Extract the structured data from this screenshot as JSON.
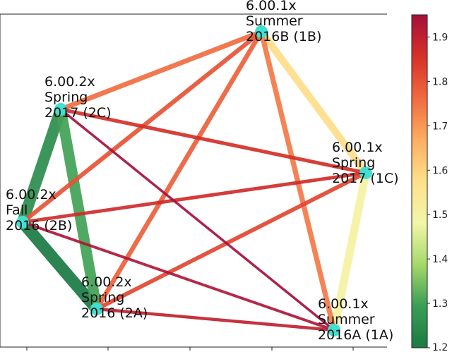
{
  "nodes": [
    {
      "id": "1B",
      "lines": [
        "6.00.1x",
        "Summer",
        "2016B (1B)"
      ]
    },
    {
      "id": "2C",
      "lines": [
        "6.00.2x",
        "Spring",
        "2017 (2C)"
      ]
    },
    {
      "id": "1C",
      "lines": [
        "6.00.1x",
        "Spring",
        "2017 (1C)"
      ]
    },
    {
      "id": "2B",
      "lines": [
        "6.00.2x",
        "Fall",
        "2016 (2B)"
      ]
    },
    {
      "id": "2A",
      "lines": [
        "6.00.2x",
        "Spring",
        "2016 (2A)"
      ]
    },
    {
      "id": "1A",
      "lines": [
        "6.00.1x",
        "Summer",
        "2016A (1A)"
      ]
    }
  ],
  "edges": [
    {
      "from": "2B",
      "to": "2A",
      "value": 1.2
    },
    {
      "from": "2C",
      "to": "2B",
      "value": 1.25
    },
    {
      "from": "2C",
      "to": "2A",
      "value": 1.3
    },
    {
      "from": "1B",
      "to": "1C",
      "value": 1.58
    },
    {
      "from": "1C",
      "to": "1A",
      "value": 1.5
    },
    {
      "from": "2C",
      "to": "1B",
      "value": 1.76
    },
    {
      "from": "1B",
      "to": "2A",
      "value": 1.78
    },
    {
      "from": "1B",
      "to": "2B",
      "value": 1.8
    },
    {
      "from": "1B",
      "to": "1A",
      "value": 1.74
    },
    {
      "from": "2C",
      "to": "1C",
      "value": 1.86
    },
    {
      "from": "2B",
      "to": "1C",
      "value": 1.87
    },
    {
      "from": "2A",
      "to": "1C",
      "value": 1.82
    },
    {
      "from": "2A",
      "to": "1A",
      "value": 1.9
    },
    {
      "from": "2B",
      "to": "1A",
      "value": 1.93
    },
    {
      "from": "2C",
      "to": "1A",
      "value": 1.95
    }
  ],
  "colorbar": {
    "min": 1.2,
    "max": 1.95,
    "ticks": [
      "1.9",
      "1.8",
      "1.7",
      "1.6",
      "1.5",
      "1.4",
      "1.3",
      "1.2"
    ],
    "stops": [
      "#1a7a43",
      "#3a9e55",
      "#a6d96a",
      "#f2f6a8",
      "#fee08b",
      "#fdae61",
      "#f06a3f",
      "#d73027",
      "#a60f3b"
    ]
  },
  "node_color": "#40e0d0"
}
